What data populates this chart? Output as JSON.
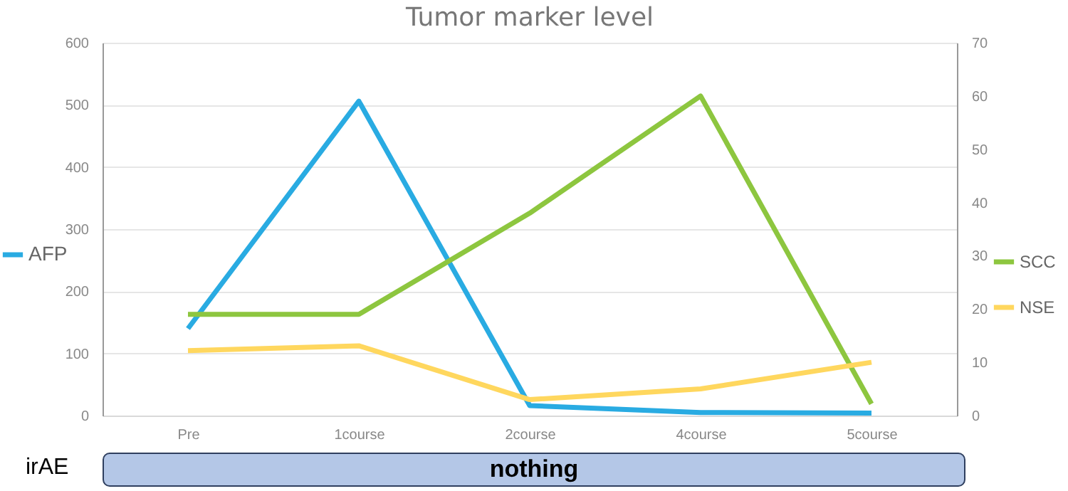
{
  "chart_data": {
    "type": "line",
    "title": "Tumor marker level",
    "categories": [
      "Pre",
      "1course",
      "2course",
      "4course",
      "5course"
    ],
    "series": [
      {
        "name": "AFP",
        "color": "#29abe2",
        "values": [
          140,
          506,
          16,
          5,
          4
        ]
      },
      {
        "name": "SCC",
        "color": "#8dc63f",
        "axis": "y2",
        "values": [
          19,
          19,
          38,
          60,
          2.2
        ]
      },
      {
        "name": "NSE",
        "color": "#ffd75e",
        "axis": "y2",
        "values": [
          12.2,
          13.1,
          3,
          5,
          10
        ]
      }
    ],
    "ylim": [
      0,
      600
    ],
    "yticks": [
      0,
      100,
      200,
      300,
      400,
      500,
      600
    ],
    "y2lim": [
      0,
      70
    ],
    "y2ticks": [
      0,
      10,
      20,
      30,
      40,
      50,
      60,
      70
    ],
    "grid": "y",
    "legend": "right",
    "line_style": "solid",
    "annotations": [
      "irAE",
      "nothing"
    ]
  }
}
